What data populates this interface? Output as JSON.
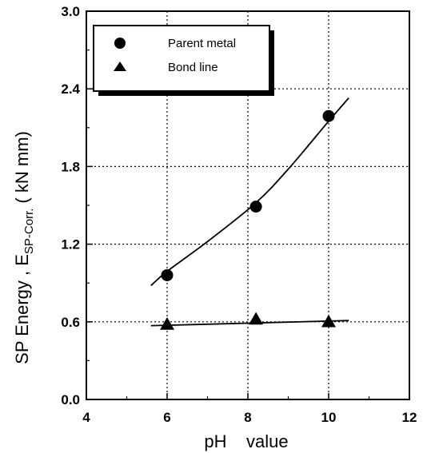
{
  "chart_data": {
    "type": "scatter",
    "xlabel": "pH    value",
    "ylabel_main": "SP  Energy , E",
    "ylabel_sub": "SP-Corr.",
    "ylabel_unit": "( kN mm)",
    "xlim": [
      4,
      12
    ],
    "ylim": [
      0.0,
      3.0
    ],
    "xticks": [
      "4",
      "6",
      "8",
      "10",
      "12"
    ],
    "yticks": [
      "0.0",
      "0.6",
      "1.2",
      "1.8",
      "2.4",
      "3.0"
    ],
    "grid": "dotted",
    "legend_position": "top-left",
    "series": [
      {
        "name": "Parent metal",
        "marker": "circle",
        "x": [
          6.0,
          8.2,
          10.0
        ],
        "y": [
          0.96,
          1.49,
          2.19
        ],
        "fit_line": {
          "x": [
            5.6,
            6.0,
            7.0,
            8.2,
            9.0,
            10.0,
            10.5
          ],
          "y": [
            0.88,
            0.99,
            1.22,
            1.52,
            1.78,
            2.15,
            2.33
          ]
        }
      },
      {
        "name": "Bond line",
        "marker": "triangle",
        "x": [
          6.0,
          8.2,
          10.0
        ],
        "y": [
          0.58,
          0.62,
          0.6
        ],
        "fit_line": {
          "x": [
            5.6,
            10.5
          ],
          "y": [
            0.57,
            0.61
          ]
        }
      }
    ]
  }
}
